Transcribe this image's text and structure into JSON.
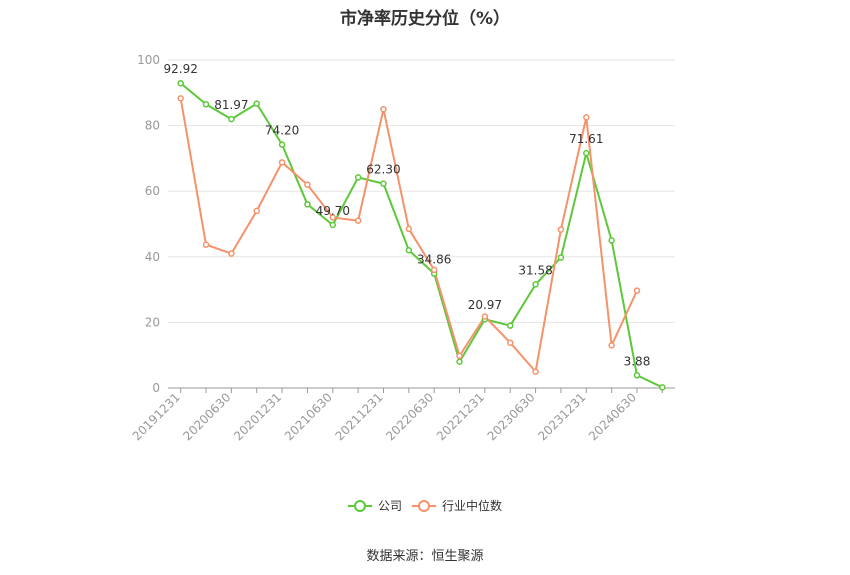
{
  "chart_data": {
    "type": "line",
    "title": "市净率历史分位（%）",
    "source": "数据来源：恒生聚源",
    "ylim": [
      0,
      100
    ],
    "yticks": [
      "0",
      "20",
      "40",
      "60",
      "80",
      "100"
    ],
    "x": [
      "20191231",
      "20200331",
      "20200630",
      "20200930",
      "20201231",
      "20210331",
      "20210630",
      "20210930",
      "20211231",
      "20220331",
      "20220630",
      "20220930",
      "20221231",
      "20230331",
      "20230630",
      "20230930",
      "20231231",
      "20240331",
      "20240630",
      "20240930"
    ],
    "xtick_labels": [
      "20191231",
      "",
      "20200630",
      "",
      "20201231",
      "",
      "20210630",
      "",
      "20211231",
      "",
      "20220630",
      "",
      "20221231",
      "",
      "20230630",
      "",
      "20231231",
      "",
      "20240630",
      ""
    ],
    "series": [
      {
        "name": "公司",
        "color": "#5cc83a",
        "values": [
          92.92,
          86.5,
          81.97,
          86.7,
          74.2,
          56.0,
          49.7,
          64.2,
          62.3,
          42.0,
          34.86,
          8.0,
          20.97,
          19.0,
          31.58,
          39.8,
          71.61,
          45.0,
          3.88,
          0.2
        ],
        "labels": [
          "92.92",
          "",
          "81.97",
          "",
          "74.20",
          "",
          "49.70",
          "",
          "62.30",
          "",
          "34.86",
          "",
          "20.97",
          "",
          "31.58",
          "",
          "71.61",
          "",
          "3.88",
          ""
        ]
      },
      {
        "name": "行业中位数",
        "color": "#f5926b",
        "values": [
          88.3,
          43.7,
          41.0,
          54.0,
          68.8,
          62.0,
          52.0,
          51.0,
          85.0,
          48.5,
          36.0,
          9.8,
          21.8,
          13.8,
          5.0,
          48.3,
          82.5,
          13.0,
          29.7,
          null
        ]
      }
    ],
    "legend": "bottom",
    "grid": true
  }
}
